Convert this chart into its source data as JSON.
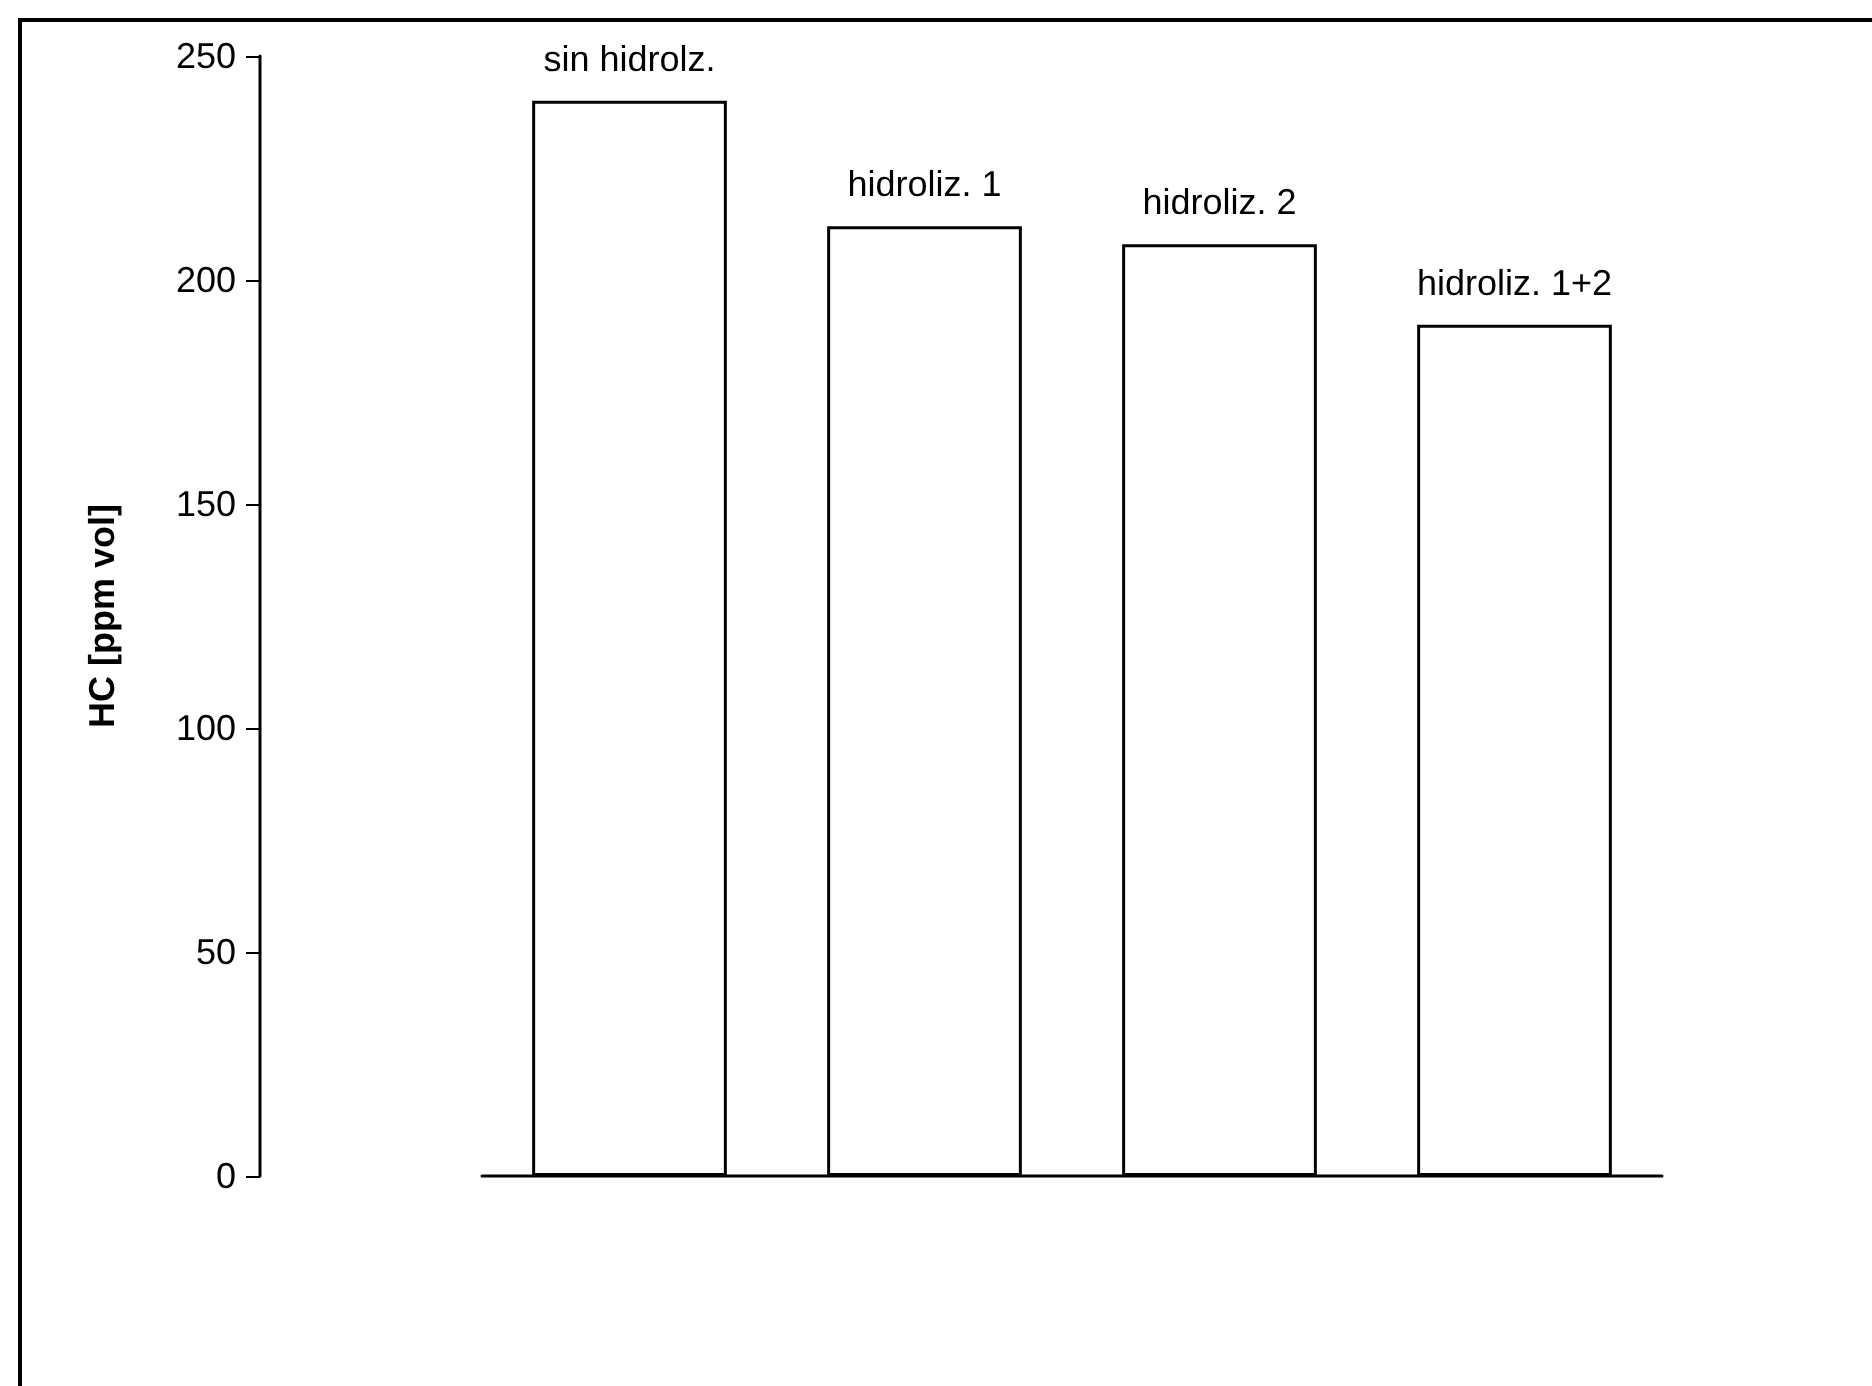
{
  "chart_data": {
    "type": "bar",
    "ylabel": "HC [ppm vol]",
    "categories": [
      "sin hidrolz.",
      "hidroliz. 1",
      "hidroliz. 2",
      "hidroliz. 1+2"
    ],
    "values": [
      240,
      212,
      208,
      190
    ],
    "color": "#ffffff",
    "ylim": [
      0,
      250
    ],
    "yticks": [
      0,
      50,
      100,
      150,
      200,
      250
    ],
    "grid": false
  }
}
